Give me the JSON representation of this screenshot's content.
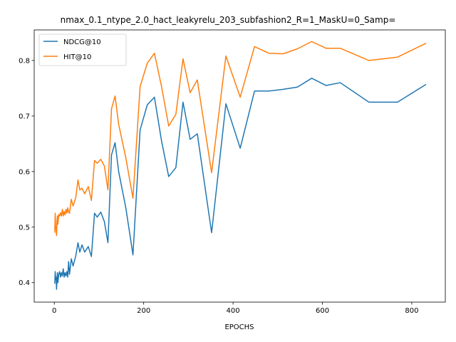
{
  "chart_data": {
    "type": "line",
    "title": "nmax_0.1_ntype_2.0_hact_leakyrelu_203_subfashion2_R=1_MaskU=0_Samp=",
    "xlabel": "EPOCHS",
    "ylabel": "",
    "xlim": [
      -45,
      875
    ],
    "ylim": [
      0.365,
      0.855
    ],
    "xticks": [
      0,
      200,
      400,
      600,
      800
    ],
    "yticks": [
      0.4,
      0.5,
      0.6,
      0.7,
      0.8
    ],
    "ytick_labels": [
      "0.4",
      "0.5",
      "0.6",
      "0.7",
      "0.8"
    ],
    "grid": false,
    "legend_position": "top-left",
    "series": [
      {
        "name": "NDCG@10",
        "color": "#1f77b4",
        "x": [
          1,
          2,
          3,
          4,
          5,
          6,
          7,
          8,
          10,
          12,
          14,
          16,
          18,
          20,
          22,
          24,
          26,
          28,
          30,
          32,
          34,
          38,
          42,
          48,
          53,
          57,
          62,
          68,
          76,
          83,
          90,
          96,
          104,
          112,
          120,
          128,
          136,
          144,
          160,
          176,
          192,
          208,
          224,
          240,
          256,
          272,
          288,
          304,
          320,
          352,
          384,
          416,
          448,
          480,
          512,
          544,
          576,
          608,
          640,
          704,
          768,
          832
        ],
        "y": [
          0.398,
          0.42,
          0.405,
          0.41,
          0.388,
          0.405,
          0.418,
          0.4,
          0.415,
          0.42,
          0.41,
          0.418,
          0.412,
          0.425,
          0.41,
          0.418,
          0.412,
          0.42,
          0.41,
          0.438,
          0.415,
          0.443,
          0.43,
          0.448,
          0.472,
          0.455,
          0.468,
          0.455,
          0.465,
          0.447,
          0.525,
          0.518,
          0.527,
          0.51,
          0.472,
          0.63,
          0.652,
          0.6,
          0.535,
          0.45,
          0.675,
          0.72,
          0.734,
          0.655,
          0.591,
          0.607,
          0.725,
          0.658,
          0.668,
          0.49,
          0.722,
          0.642,
          0.745,
          0.745,
          0.748,
          0.752,
          0.768,
          0.755,
          0.76,
          0.725,
          0.725,
          0.757
        ]
      },
      {
        "name": "HIT@10",
        "color": "#ff7f0e",
        "x": [
          1,
          2,
          3,
          4,
          5,
          6,
          7,
          8,
          10,
          12,
          14,
          16,
          18,
          20,
          22,
          24,
          26,
          28,
          30,
          32,
          34,
          38,
          42,
          48,
          53,
          57,
          62,
          68,
          76,
          83,
          90,
          96,
          104,
          112,
          120,
          128,
          136,
          144,
          160,
          176,
          192,
          208,
          224,
          240,
          256,
          272,
          288,
          304,
          320,
          352,
          384,
          416,
          448,
          480,
          512,
          544,
          576,
          608,
          640,
          704,
          768,
          832
        ],
        "y": [
          0.49,
          0.525,
          0.5,
          0.495,
          0.485,
          0.51,
          0.52,
          0.505,
          0.523,
          0.52,
          0.526,
          0.52,
          0.532,
          0.52,
          0.528,
          0.522,
          0.532,
          0.525,
          0.535,
          0.527,
          0.525,
          0.55,
          0.538,
          0.553,
          0.585,
          0.567,
          0.57,
          0.56,
          0.573,
          0.548,
          0.62,
          0.615,
          0.622,
          0.61,
          0.567,
          0.713,
          0.736,
          0.685,
          0.625,
          0.552,
          0.753,
          0.795,
          0.813,
          0.753,
          0.682,
          0.703,
          0.803,
          0.742,
          0.765,
          0.598,
          0.808,
          0.734,
          0.825,
          0.813,
          0.812,
          0.821,
          0.834,
          0.822,
          0.822,
          0.8,
          0.806,
          0.831
        ]
      }
    ]
  }
}
